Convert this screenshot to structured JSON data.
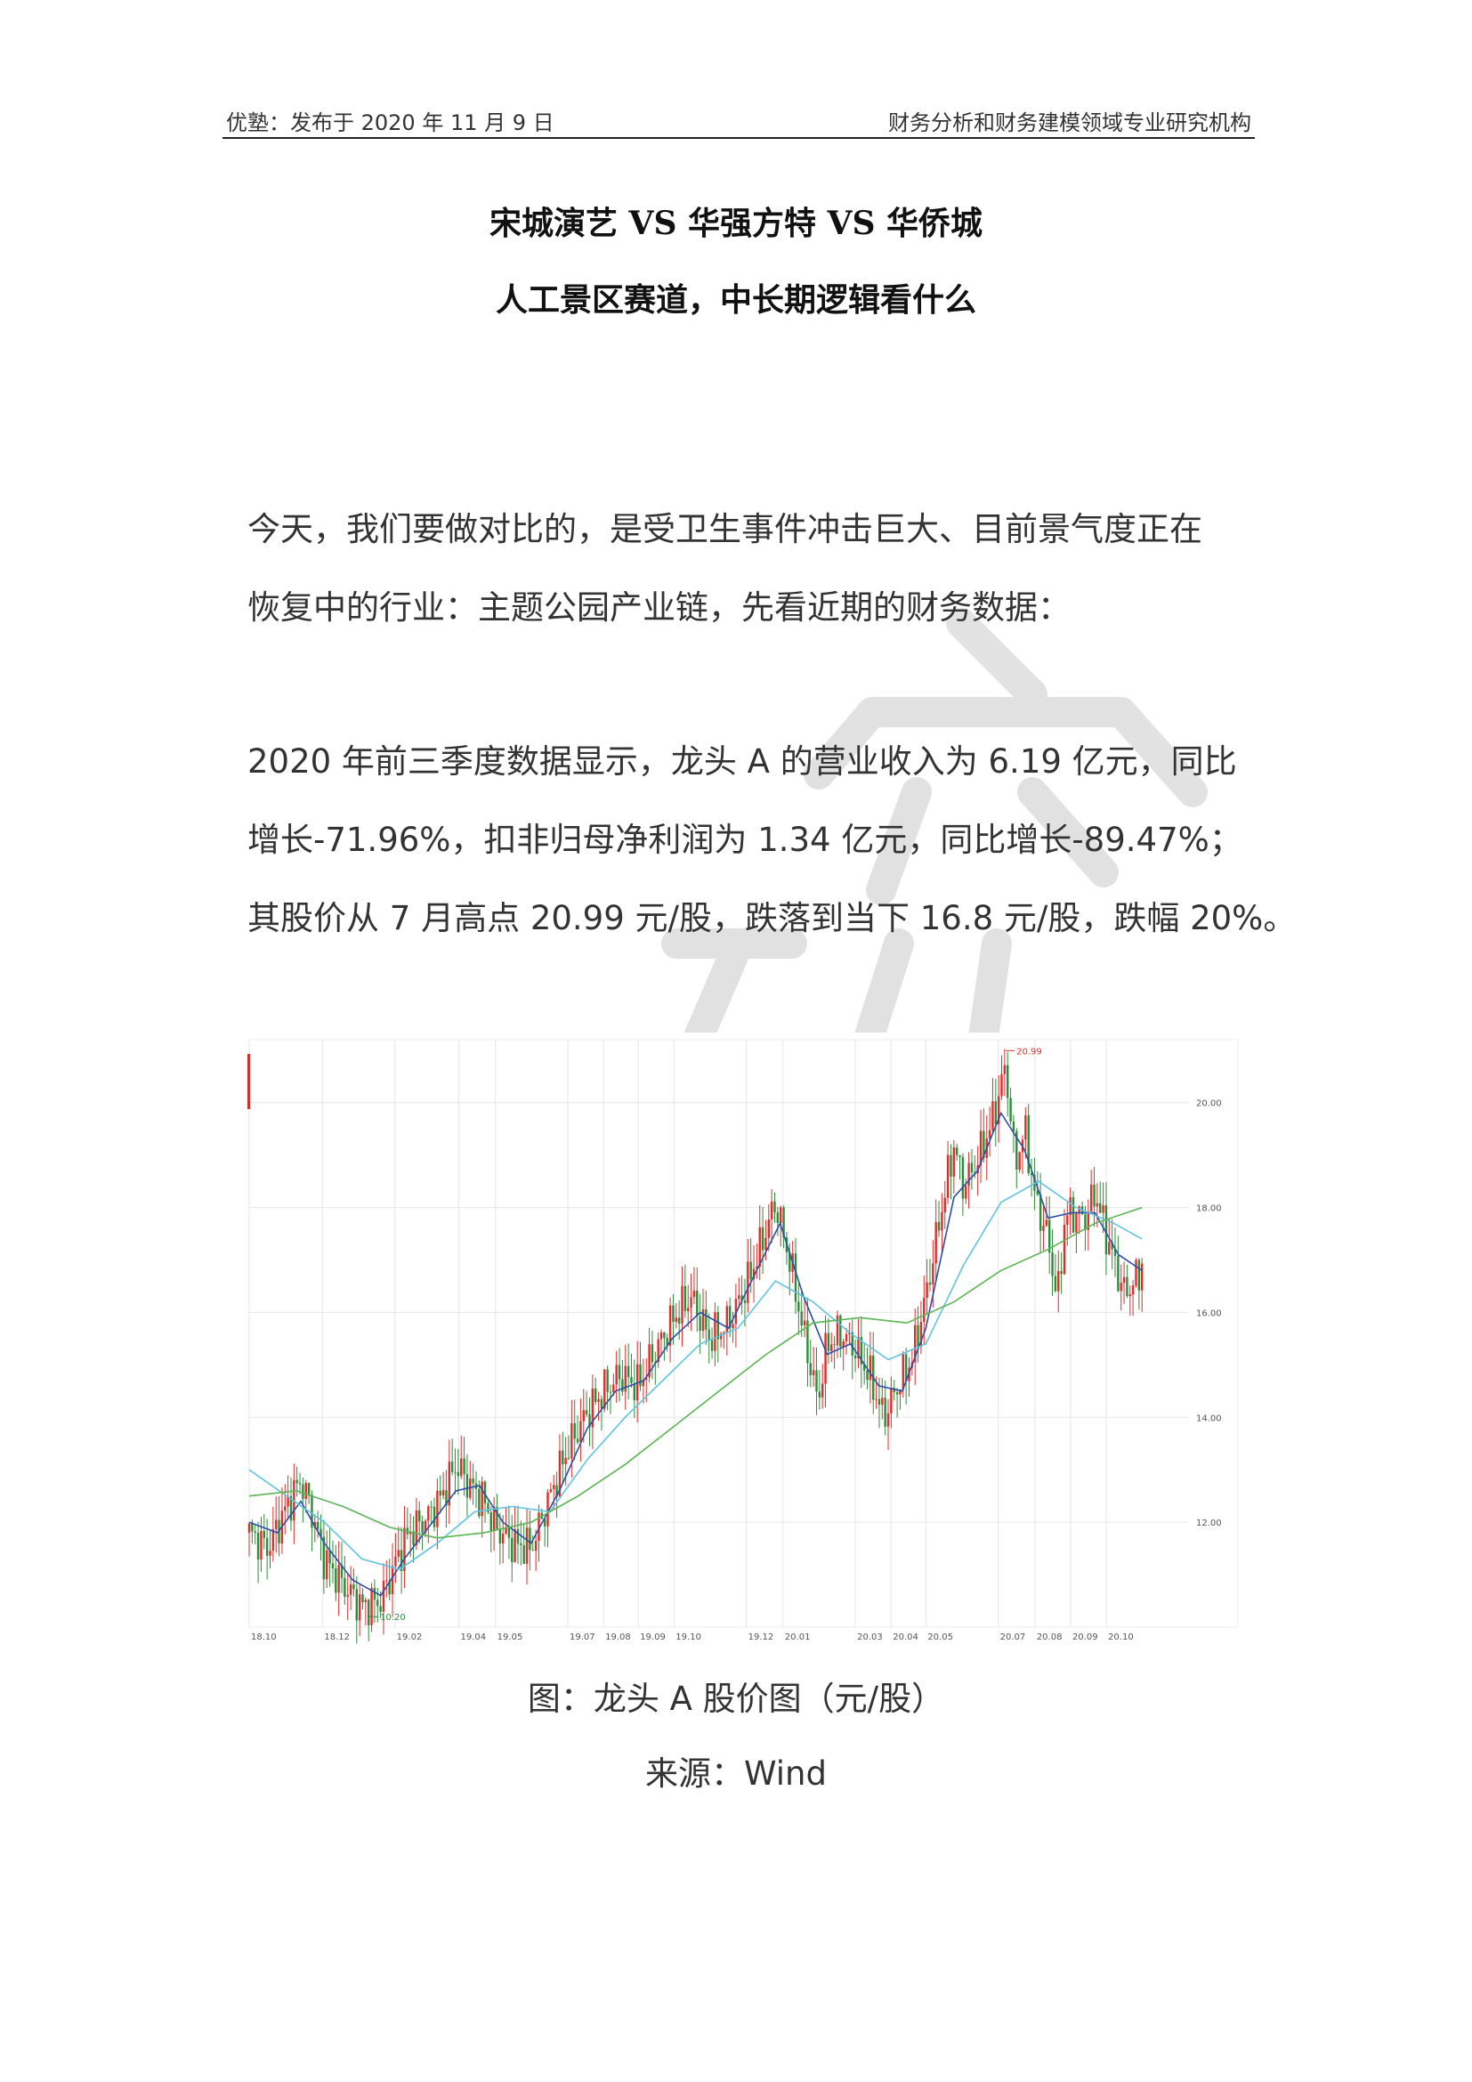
{
  "header": {
    "left": "优塾：发布于 2020 年 11 月 9 日",
    "right": "财务分析和财务建模领域专业研究机构"
  },
  "title": {
    "line1": "宋城演艺 VS 华强方特 VS 华侨城",
    "line2": "人工景区赛道，中长期逻辑看什么"
  },
  "paragraphs": {
    "p1": [
      "今天，我们要做对比的，是受卫生事件冲击巨大、目前景气度正在",
      "恢复中的行业：主题公园产业链，先看近期的财务数据："
    ],
    "p2": [
      "2020 年前三季度数据显示，龙头 A 的营业收入为 6.19 亿元，同比",
      "增长-71.96%，扣非归母净利润为 1.34 亿元，同比增长-89.47%；",
      "其股价从 7 月高点 20.99 元/股，跌落到当下 16.8 元/股，跌幅 20%。"
    ]
  },
  "caption": {
    "figure": "图：龙头 A 股价图（元/股）",
    "source": "来源：Wind"
  },
  "colors": {
    "up_candle": "#d9302c",
    "down_candle": "#2e8b3a",
    "ma_blue": "#2b4fa8",
    "ma_cyan": "#5fc4e0",
    "ma_green": "#5ab552",
    "ma_gray": "#9aa3b0",
    "grid": "#e6e6e6",
    "watermark": "#d8d8d8"
  },
  "chart_data": {
    "type": "line",
    "title": "",
    "xlabel": "",
    "ylabel": "",
    "ylim": [
      10,
      21.2
    ],
    "yticks": [
      12,
      14,
      16,
      18,
      20
    ],
    "ytick_labels": [
      "12.00",
      "14.00",
      "16.00",
      "18.00",
      "20.00"
    ],
    "x_labels": [
      "18.10",
      "18.12",
      "19.02",
      "19.04",
      "19.05",
      "19.07",
      "19.08",
      "19.09",
      "19.10",
      "19.12",
      "20.01",
      "20.03",
      "20.04",
      "20.05",
      "20.07",
      "20.08",
      "20.09",
      "20.10"
    ],
    "x_label_positions": [
      0.0,
      0.078,
      0.155,
      0.223,
      0.262,
      0.339,
      0.377,
      0.414,
      0.452,
      0.529,
      0.568,
      0.645,
      0.683,
      0.72,
      0.797,
      0.836,
      0.874,
      0.912
    ],
    "annotations": [
      {
        "text": "20.99",
        "x": 0.805,
        "y": 20.99
      },
      {
        "text": "10.20",
        "x": 0.128,
        "y": 10.2
      }
    ],
    "series": [
      {
        "key": "price",
        "points": [
          [
            0.0,
            11.8
          ],
          [
            0.02,
            11.5
          ],
          [
            0.04,
            12.3
          ],
          [
            0.055,
            12.8
          ],
          [
            0.065,
            12.3
          ],
          [
            0.08,
            11.3
          ],
          [
            0.1,
            10.8
          ],
          [
            0.12,
            10.4
          ],
          [
            0.14,
            10.5
          ],
          [
            0.155,
            11.2
          ],
          [
            0.17,
            11.8
          ],
          [
            0.19,
            12.1
          ],
          [
            0.205,
            12.5
          ],
          [
            0.22,
            13.1
          ],
          [
            0.235,
            12.7
          ],
          [
            0.25,
            12.4
          ],
          [
            0.262,
            11.9
          ],
          [
            0.28,
            11.6
          ],
          [
            0.3,
            11.5
          ],
          [
            0.32,
            12.5
          ],
          [
            0.339,
            13.4
          ],
          [
            0.36,
            14.1
          ],
          [
            0.377,
            14.5
          ],
          [
            0.395,
            14.8
          ],
          [
            0.414,
            14.6
          ],
          [
            0.43,
            15.2
          ],
          [
            0.452,
            15.9
          ],
          [
            0.47,
            16.3
          ],
          [
            0.49,
            15.5
          ],
          [
            0.51,
            15.8
          ],
          [
            0.529,
            16.5
          ],
          [
            0.545,
            17.3
          ],
          [
            0.56,
            18.1
          ],
          [
            0.575,
            17.0
          ],
          [
            0.59,
            15.6
          ],
          [
            0.605,
            14.3
          ],
          [
            0.615,
            15.4
          ],
          [
            0.63,
            15.6
          ],
          [
            0.645,
            15.3
          ],
          [
            0.66,
            14.8
          ],
          [
            0.675,
            14.0
          ],
          [
            0.69,
            14.6
          ],
          [
            0.705,
            15.1
          ],
          [
            0.72,
            16.3
          ],
          [
            0.735,
            17.8
          ],
          [
            0.75,
            19.2
          ],
          [
            0.76,
            18.4
          ],
          [
            0.775,
            18.9
          ],
          [
            0.79,
            19.6
          ],
          [
            0.805,
            20.7
          ],
          [
            0.815,
            18.8
          ],
          [
            0.825,
            19.5
          ],
          [
            0.836,
            18.2
          ],
          [
            0.85,
            17.4
          ],
          [
            0.86,
            16.2
          ],
          [
            0.868,
            17.8
          ],
          [
            0.874,
            17.9
          ],
          [
            0.89,
            17.8
          ],
          [
            0.9,
            18.3
          ],
          [
            0.91,
            17.6
          ],
          [
            0.92,
            17.0
          ],
          [
            0.93,
            16.4
          ],
          [
            0.94,
            16.5
          ],
          [
            0.95,
            16.9
          ]
        ]
      },
      {
        "key": "ma_short",
        "points": [
          [
            0.0,
            12.0
          ],
          [
            0.03,
            11.8
          ],
          [
            0.055,
            12.4
          ],
          [
            0.08,
            11.6
          ],
          [
            0.11,
            10.9
          ],
          [
            0.14,
            10.6
          ],
          [
            0.165,
            11.3
          ],
          [
            0.195,
            12.0
          ],
          [
            0.22,
            12.6
          ],
          [
            0.245,
            12.7
          ],
          [
            0.27,
            12.0
          ],
          [
            0.3,
            11.6
          ],
          [
            0.33,
            12.6
          ],
          [
            0.36,
            13.8
          ],
          [
            0.39,
            14.5
          ],
          [
            0.42,
            14.7
          ],
          [
            0.45,
            15.5
          ],
          [
            0.48,
            16.0
          ],
          [
            0.51,
            15.7
          ],
          [
            0.54,
            16.8
          ],
          [
            0.565,
            17.7
          ],
          [
            0.59,
            16.3
          ],
          [
            0.615,
            15.2
          ],
          [
            0.64,
            15.4
          ],
          [
            0.67,
            14.6
          ],
          [
            0.695,
            14.5
          ],
          [
            0.72,
            15.7
          ],
          [
            0.75,
            18.2
          ],
          [
            0.775,
            18.7
          ],
          [
            0.8,
            19.8
          ],
          [
            0.825,
            19.1
          ],
          [
            0.85,
            17.8
          ],
          [
            0.875,
            17.9
          ],
          [
            0.9,
            17.9
          ],
          [
            0.925,
            17.1
          ],
          [
            0.95,
            16.8
          ]
        ]
      },
      {
        "key": "ma_mid",
        "points": [
          [
            0.0,
            13.0
          ],
          [
            0.04,
            12.5
          ],
          [
            0.08,
            12.0
          ],
          [
            0.12,
            11.3
          ],
          [
            0.16,
            11.1
          ],
          [
            0.2,
            11.6
          ],
          [
            0.24,
            12.2
          ],
          [
            0.28,
            12.3
          ],
          [
            0.32,
            12.2
          ],
          [
            0.36,
            13.2
          ],
          [
            0.4,
            14.0
          ],
          [
            0.44,
            14.7
          ],
          [
            0.48,
            15.4
          ],
          [
            0.52,
            15.7
          ],
          [
            0.56,
            16.6
          ],
          [
            0.6,
            16.2
          ],
          [
            0.64,
            15.6
          ],
          [
            0.68,
            15.1
          ],
          [
            0.72,
            15.4
          ],
          [
            0.76,
            16.9
          ],
          [
            0.8,
            18.1
          ],
          [
            0.84,
            18.5
          ],
          [
            0.88,
            18.0
          ],
          [
            0.92,
            17.7
          ],
          [
            0.95,
            17.4
          ]
        ]
      },
      {
        "key": "ma_long",
        "points": [
          [
            0.0,
            12.5
          ],
          [
            0.05,
            12.6
          ],
          [
            0.1,
            12.3
          ],
          [
            0.15,
            11.9
          ],
          [
            0.2,
            11.7
          ],
          [
            0.25,
            11.8
          ],
          [
            0.3,
            12.0
          ],
          [
            0.35,
            12.5
          ],
          [
            0.4,
            13.1
          ],
          [
            0.45,
            13.8
          ],
          [
            0.5,
            14.5
          ],
          [
            0.55,
            15.2
          ],
          [
            0.6,
            15.8
          ],
          [
            0.65,
            15.9
          ],
          [
            0.7,
            15.8
          ],
          [
            0.75,
            16.2
          ],
          [
            0.8,
            16.8
          ],
          [
            0.85,
            17.2
          ],
          [
            0.9,
            17.7
          ],
          [
            0.95,
            18.0
          ]
        ]
      }
    ]
  }
}
